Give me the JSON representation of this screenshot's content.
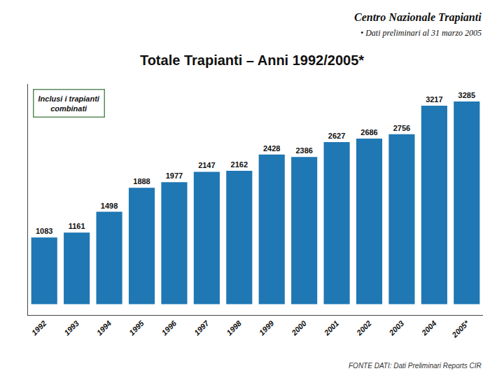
{
  "chart_data": {
    "type": "bar",
    "title": "Totale Trapianti – Anni 1992/2005*",
    "annotations": [
      "Centro Nazionale Trapianti",
      "• Dati preliminari al 31 marzo 2005",
      "Inclusi i trapianti\ncombinati",
      "FONTE DATI: Dati Preliminari Reports CIR"
    ],
    "categories": [
      "1992",
      "1993",
      "1994",
      "1995",
      "1996",
      "1997",
      "1998",
      "1999",
      "2000",
      "2001",
      "2002",
      "2003",
      "2004",
      "2005*"
    ],
    "values": [
      1083,
      1161,
      1498,
      1888,
      1977,
      2147,
      2162,
      2428,
      2386,
      2627,
      2686,
      2756,
      3217,
      3285
    ],
    "ylim": [
      -175,
      3570
    ],
    "yticks": [],
    "tick_labels": "x",
    "data_labels": true,
    "grid": false
  }
}
